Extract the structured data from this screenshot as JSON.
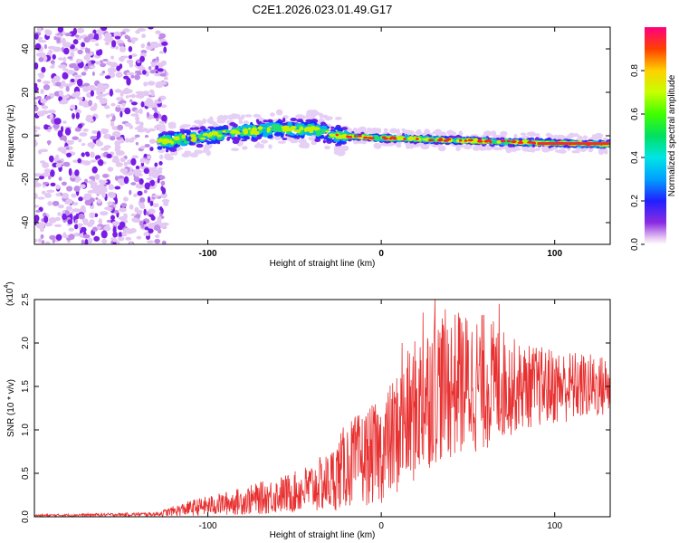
{
  "title": "C2E1.2026.023.01.49.G17",
  "chart_data": [
    {
      "type": "heatmap",
      "title": "C2E1.2026.023.01.49.G17",
      "xlabel": "Height of straight line (km)",
      "ylabel": "Frequency (Hz)",
      "xlim": [
        -200,
        132
      ],
      "ylim": [
        -50,
        50
      ],
      "x_ticks": [
        -100,
        0,
        100
      ],
      "x_tick_labels": [
        "-100",
        "0",
        "100"
      ],
      "y_ticks": [
        -40,
        -20,
        0,
        20,
        40
      ],
      "y_tick_labels": [
        "-40",
        "-20",
        "0",
        "20",
        "40"
      ],
      "colorbar": {
        "label": "Normalized spectral amplitude",
        "range": [
          0,
          1
        ],
        "ticks": [
          0.0,
          0.2,
          0.4,
          0.6,
          0.8
        ],
        "tick_labels": [
          "0.0",
          "0.2",
          "0.4",
          "0.6",
          "0.8"
        ]
      },
      "trace": {
        "description_segments": [
          {
            "x_start": -200,
            "x_end": -128,
            "kind": "noise"
          },
          {
            "x_start": -128,
            "x_end": 132,
            "kind": "signal"
          }
        ],
        "center_frequency": [
          {
            "x": -128,
            "f": -3
          },
          {
            "x": -100,
            "f": 0
          },
          {
            "x": -80,
            "f": 2
          },
          {
            "x": -60,
            "f": 3
          },
          {
            "x": -40,
            "f": 3
          },
          {
            "x": -25,
            "f": 0
          },
          {
            "x": 0,
            "f": -1
          },
          {
            "x": 40,
            "f": -2
          },
          {
            "x": 80,
            "f": -3
          },
          {
            "x": 132,
            "f": -4
          }
        ]
      }
    },
    {
      "type": "line",
      "xlabel": "Height of straight line (km)",
      "ylabel": "SNR (10 * v/v)",
      "y_multiplier_label": "(x10",
      "y_multiplier_exponent": "4",
      "y_multiplier_close": ")",
      "xlim": [
        -200,
        132
      ],
      "ylim": [
        0,
        25000
      ],
      "x_ticks": [
        -100,
        0,
        100
      ],
      "x_tick_labels": [
        "-100",
        "0",
        "100"
      ],
      "y_ticks": [
        0,
        5000,
        10000,
        15000,
        20000,
        25000
      ],
      "y_tick_labels": [
        "0.0",
        "0.5",
        "1.0",
        "1.5",
        "2.0",
        "2.5"
      ],
      "series": [
        {
          "name": "SNR",
          "color": "#e83030",
          "envelope": [
            {
              "x": -200,
              "mean": 150,
              "amp": 120
            },
            {
              "x": -150,
              "mean": 250,
              "amp": 200
            },
            {
              "x": -130,
              "mean": 300,
              "amp": 250
            },
            {
              "x": -110,
              "mean": 1000,
              "amp": 900
            },
            {
              "x": -80,
              "mean": 1800,
              "amp": 1600
            },
            {
              "x": -50,
              "mean": 2800,
              "amp": 2400
            },
            {
              "x": -30,
              "mean": 4000,
              "amp": 3500
            },
            {
              "x": -20,
              "mean": 6000,
              "amp": 5000
            },
            {
              "x": 0,
              "mean": 7500,
              "amp": 6000
            },
            {
              "x": 15,
              "mean": 11000,
              "amp": 8000
            },
            {
              "x": 30,
              "mean": 15000,
              "amp": 9000
            },
            {
              "x": 60,
              "mean": 15500,
              "amp": 8000
            },
            {
              "x": 80,
              "mean": 15000,
              "amp": 5000
            },
            {
              "x": 132,
              "mean": 15000,
              "amp": 3500
            }
          ],
          "peaks": [
            {
              "x": 31,
              "y": 25000
            },
            {
              "x": 68,
              "y": 24500
            },
            {
              "x": 24,
              "y": 23500
            },
            {
              "x": 45,
              "y": 23000
            },
            {
              "x": 12,
              "y": 20000
            }
          ]
        }
      ]
    }
  ]
}
